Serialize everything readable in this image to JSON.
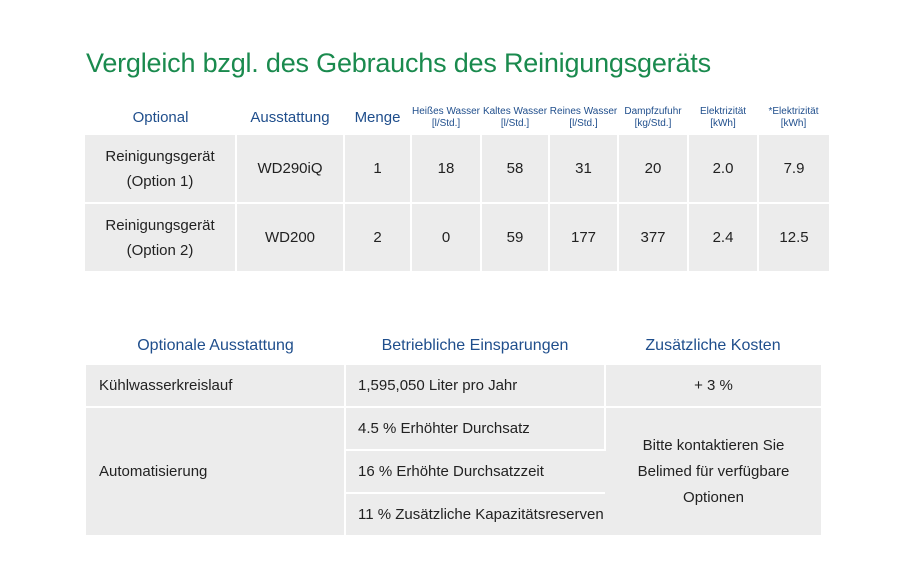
{
  "title": "Vergleich bzgl. des Gebrauchs des Reinigungsgeräts",
  "table1": {
    "headers": {
      "optional": "Optional",
      "ausstattung": "Ausstattung",
      "menge": "Menge",
      "heisses_wasser": "Heißes Wasser",
      "heisses_wasser_unit": "[l/Std.]",
      "kaltes_wasser": "Kaltes Wasser",
      "kaltes_wasser_unit": "[l/Std.]",
      "reines_wasser": "Reines Wasser",
      "reines_wasser_unit": "[l/Std.]",
      "dampfzufuhr": "Dampfzufuhr",
      "dampfzufuhr_unit": "[kg/Std.]",
      "elektrizitaet": "Elektrizität",
      "elektrizitaet_unit": "[kWh]",
      "elektrizitaet2": "*Elektrizität",
      "elektrizitaet2_unit": "[kWh]"
    },
    "rows": [
      {
        "optional_line1": "Reinigungsgerät",
        "optional_line2": "(Option 1)",
        "ausstattung": "WD290iQ",
        "menge": "1",
        "heisses_wasser": "18",
        "kaltes_wasser": "58",
        "reines_wasser": "31",
        "dampfzufuhr": "20",
        "elektrizitaet": "2.0",
        "elektrizitaet2": "7.9"
      },
      {
        "optional_line1": "Reinigungsgerät",
        "optional_line2": "(Option 2)",
        "ausstattung": "WD200",
        "menge": "2",
        "heisses_wasser": "0",
        "kaltes_wasser": "59",
        "reines_wasser": "177",
        "dampfzufuhr": "377",
        "elektrizitaet": "2.4",
        "elektrizitaet2": "12.5"
      }
    ]
  },
  "table2": {
    "headers": {
      "optionale_ausstattung": "Optionale Ausstattung",
      "betriebliche_einsparungen": "Betriebliche Einsparungen",
      "zusaetzliche_kosten": "Zusätzliche Kosten"
    },
    "row1": {
      "ausstattung": "Kühlwasserkreislauf",
      "einsparung": "1,595,050 Liter pro Jahr",
      "kosten": "+ 3 %"
    },
    "row2": {
      "ausstattung": "Automatisierung",
      "einsparungen": [
        "4.5 % Erhöhter Durchsatz",
        "16 % Erhöhte Durchsatzzeit",
        "11 % Zusätzliche Kapazitätsreserven"
      ],
      "kosten_line1": "Bitte kontaktieren Sie",
      "kosten_line2": "Belimed für verfügbare",
      "kosten_line3": "Optionen"
    }
  },
  "colors": {
    "title": "#1a8a4e",
    "header": "#1f4e8c",
    "cell_bg": "#ececec"
  }
}
